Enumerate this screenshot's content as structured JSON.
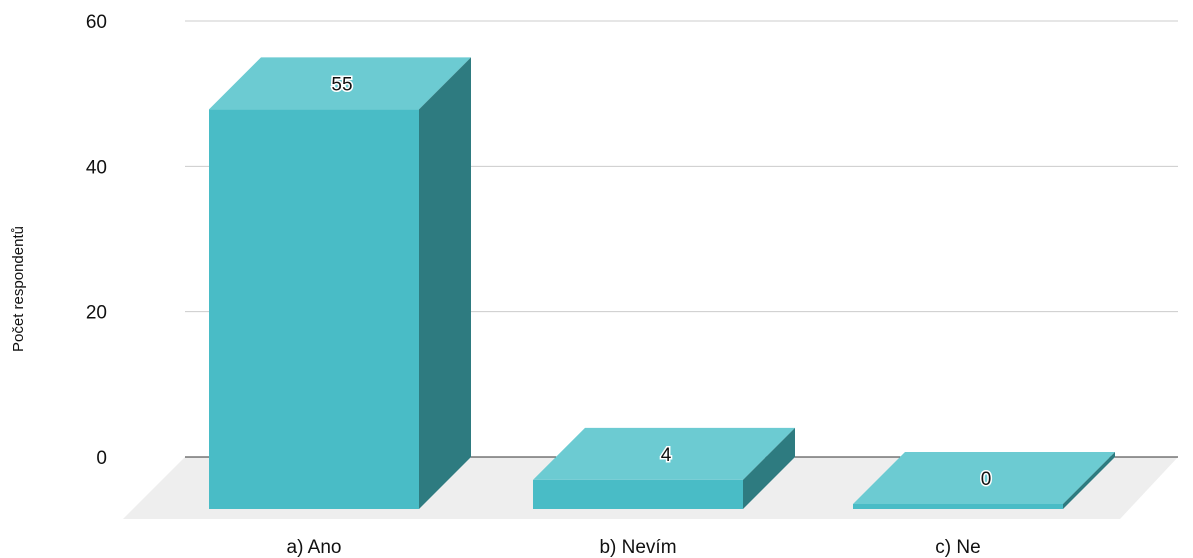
{
  "chart_data": {
    "type": "bar",
    "style": "3d",
    "categories": [
      "a) Ano",
      "b) Nevím",
      "c) Ne"
    ],
    "values": [
      55,
      4,
      0
    ],
    "data_labels": [
      "55",
      "4",
      "0"
    ],
    "ylabel": "Počet respondentů",
    "xlabel": "",
    "ylim": [
      0,
      60
    ],
    "yticks": [
      "0",
      "20",
      "40",
      "60"
    ],
    "grid": true,
    "legend": "none",
    "colors": {
      "front": "#49bcc6",
      "top": "#6ccbd2",
      "side": "#2e7b80",
      "floor": "#eeeeee",
      "gridline": "#cccccc",
      "baseline": "#333333"
    }
  }
}
